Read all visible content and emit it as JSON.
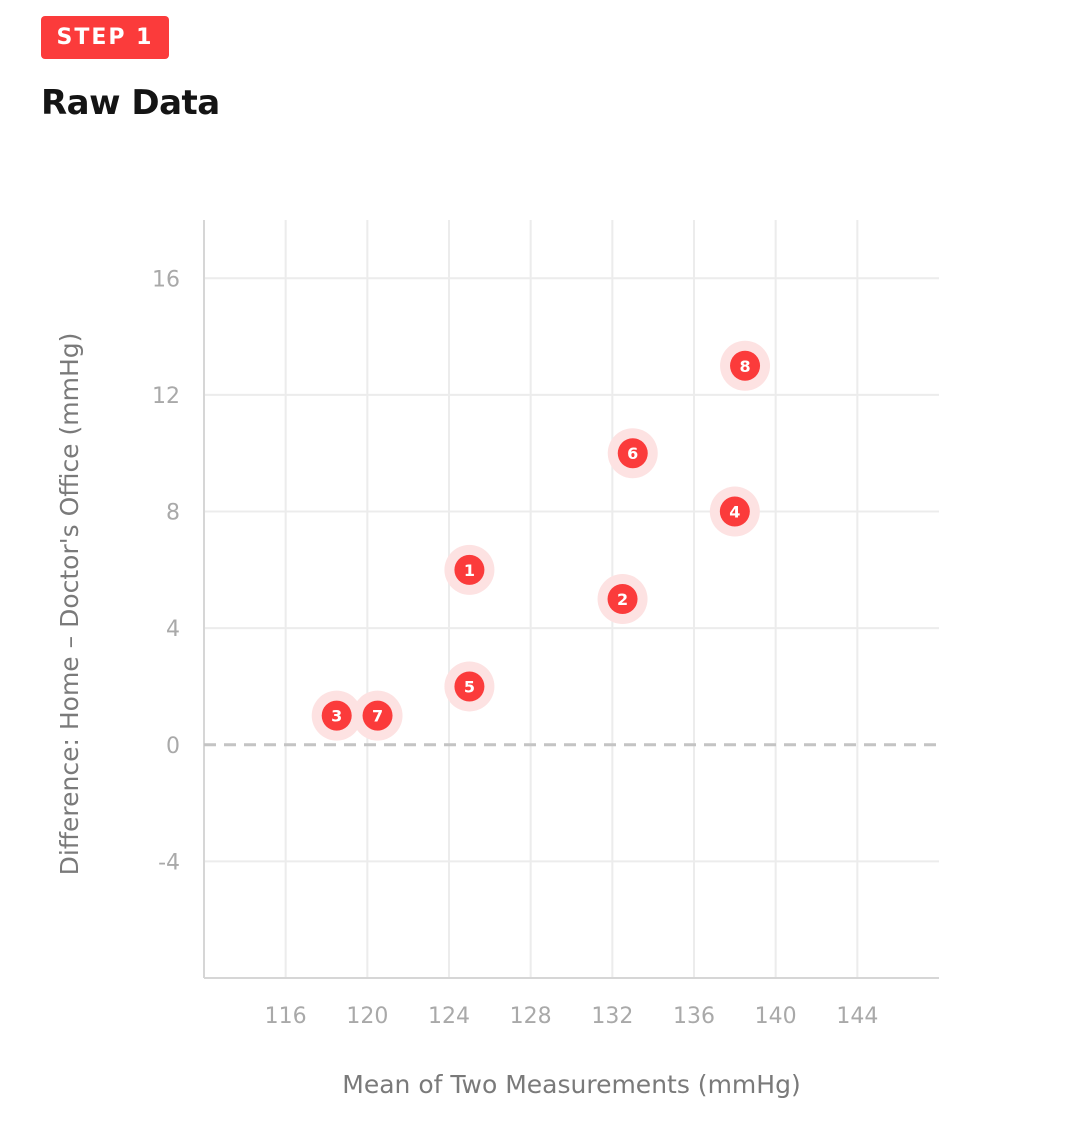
{
  "header": {
    "step_label": "STEP 1",
    "title": "Raw Data"
  },
  "colors": {
    "accent": "#fb3b3b",
    "point": "#fb3b3b",
    "point_halo": "#fde2e2",
    "grid": "#ececec",
    "axis": "#d6d6d6",
    "zero_line": "#c4c4c4",
    "tick_text": "#a9a9a9",
    "axis_title_text": "#7a7a7a"
  },
  "chart_data": {
    "type": "scatter",
    "title": "",
    "xlabel": "Mean of Two Measurements (mmHg)",
    "ylabel": "Difference: Home – Doctor's Office (mmHg)",
    "xlim": [
      112,
      148
    ],
    "ylim": [
      -8,
      18
    ],
    "xticks": [
      116,
      120,
      124,
      128,
      132,
      136,
      140,
      144
    ],
    "yticks": [
      -4,
      0,
      4,
      8,
      12,
      16
    ],
    "grid": true,
    "reference_line": {
      "y": 0,
      "style": "dashed"
    },
    "points": [
      {
        "label": "1",
        "x": 125,
        "y": 6
      },
      {
        "label": "2",
        "x": 132.5,
        "y": 5
      },
      {
        "label": "3",
        "x": 118.5,
        "y": 1
      },
      {
        "label": "4",
        "x": 138,
        "y": 8
      },
      {
        "label": "5",
        "x": 125,
        "y": 2
      },
      {
        "label": "6",
        "x": 133,
        "y": 10
      },
      {
        "label": "7",
        "x": 120.5,
        "y": 1
      },
      {
        "label": "8",
        "x": 138.5,
        "y": 13
      }
    ]
  }
}
